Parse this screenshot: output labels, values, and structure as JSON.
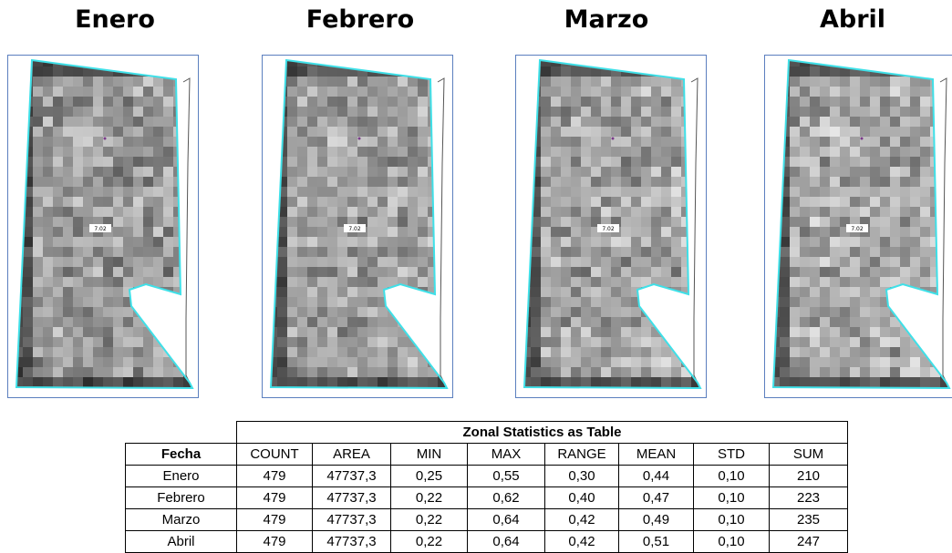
{
  "panels": [
    {
      "title": "Enero",
      "label": "7.02"
    },
    {
      "title": "Febrero",
      "label": "7.02"
    },
    {
      "title": "Marzo",
      "label": "7.02"
    },
    {
      "title": "Abril",
      "label": "7.02"
    }
  ],
  "table": {
    "caption": "Zonal Statistics as Table",
    "columns": [
      "Fecha",
      "COUNT",
      "AREA",
      "MIN",
      "MAX",
      "RANGE",
      "MEAN",
      "STD",
      "SUM"
    ],
    "rows": [
      [
        "Enero",
        "479",
        "47737,3",
        "0,25",
        "0,55",
        "0,30",
        "0,44",
        "0,10",
        "210"
      ],
      [
        "Febrero",
        "479",
        "47737,3",
        "0,22",
        "0,62",
        "0,40",
        "0,47",
        "0,10",
        "223"
      ],
      [
        "Marzo",
        "479",
        "47737,3",
        "0,22",
        "0,64",
        "0,42",
        "0,49",
        "0,10",
        "235"
      ],
      [
        "Abril",
        "479",
        "47737,3",
        "0,22",
        "0,64",
        "0,42",
        "0,51",
        "0,10",
        "247"
      ]
    ]
  }
}
